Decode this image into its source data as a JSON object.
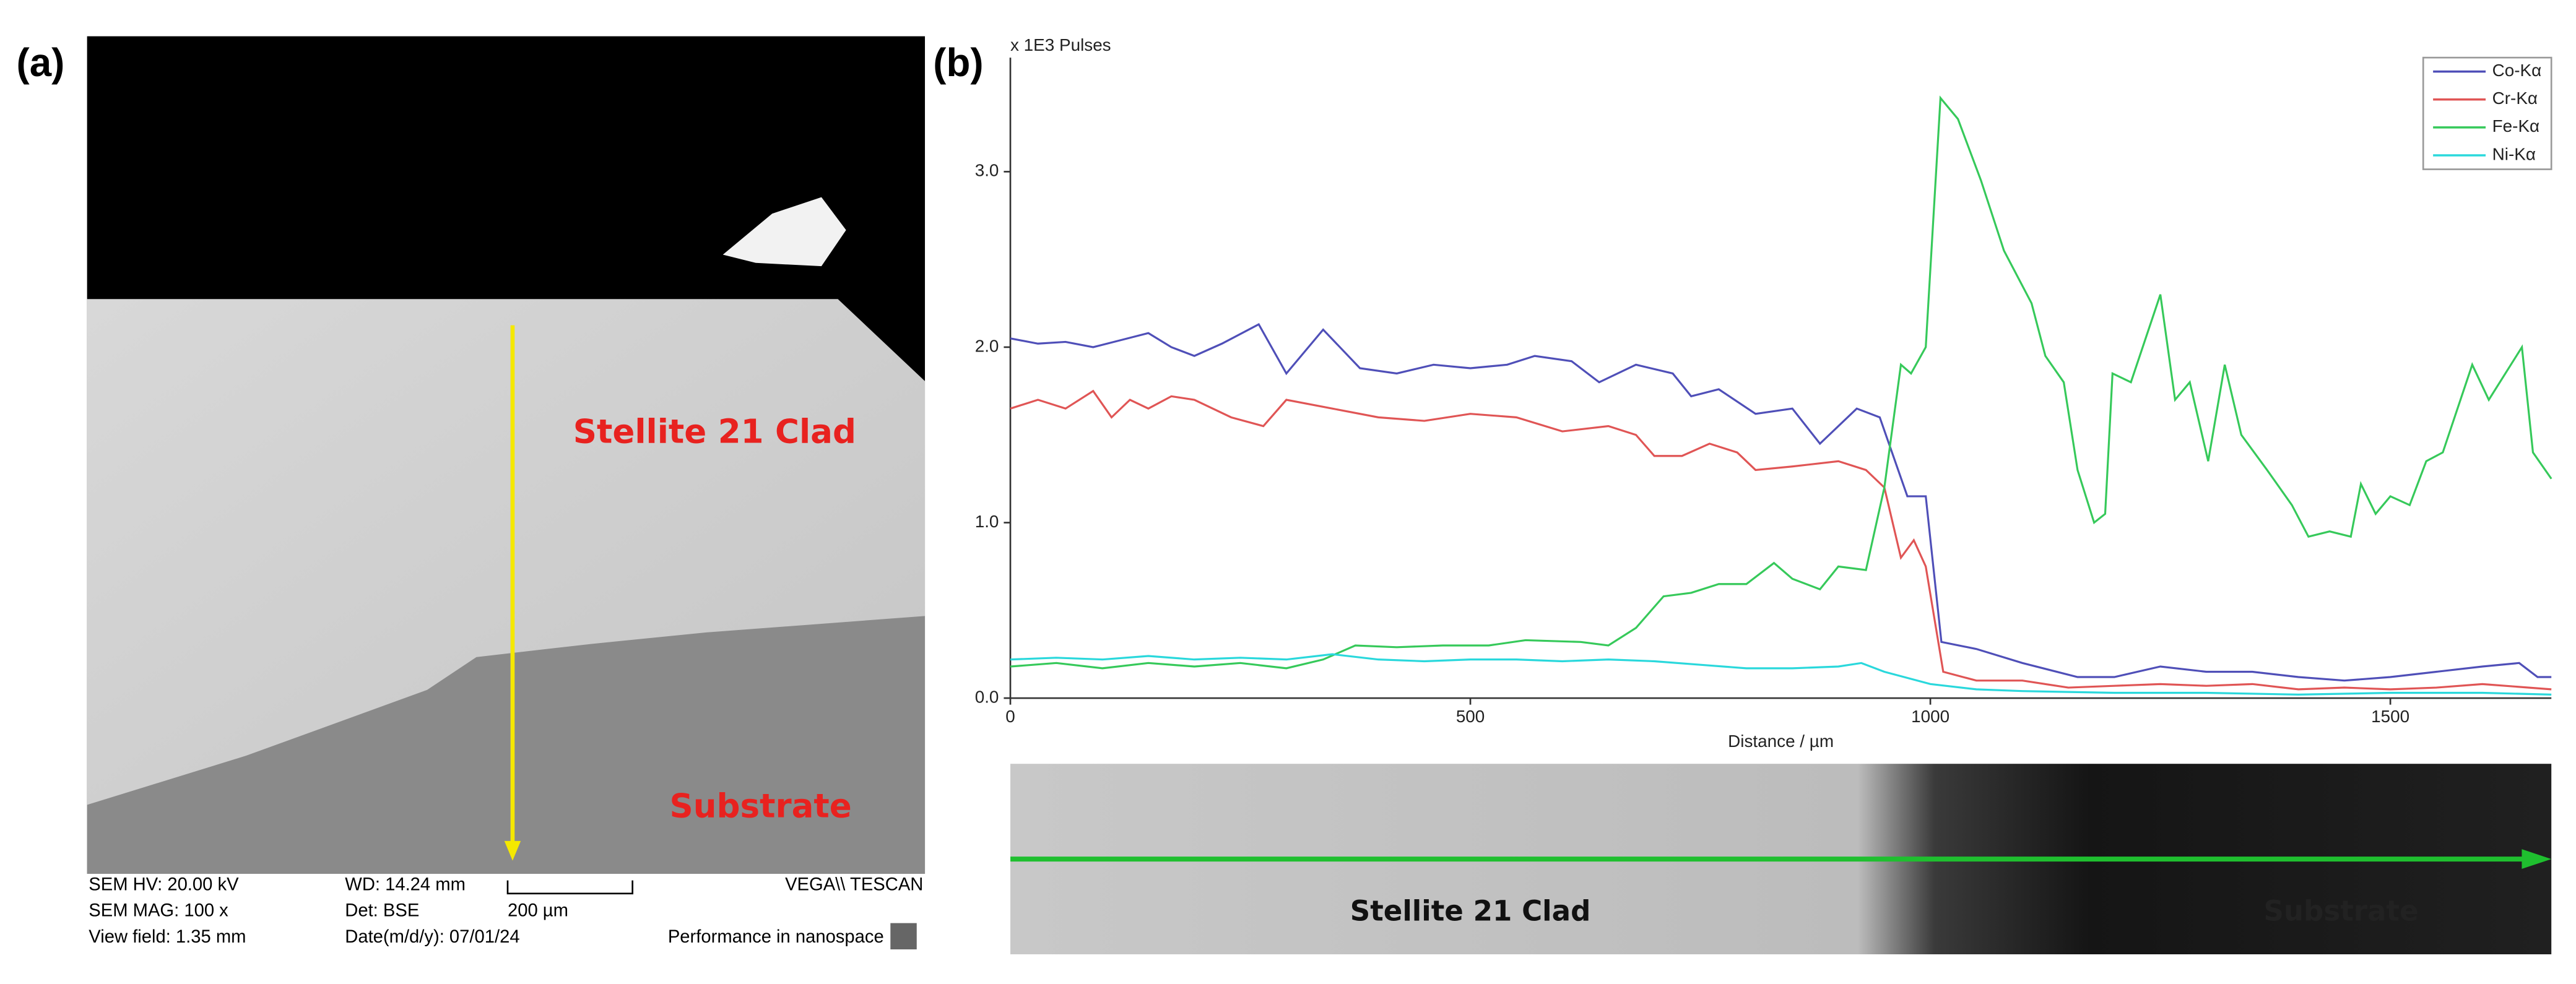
{
  "panel_labels": [
    "(a)",
    "(b)"
  ],
  "sem_image": {
    "regions": [
      "Stellite 21 Clad",
      "Substrate"
    ],
    "info": [
      "SEM HV: 20.00 kV",
      "WD: 14.24 mm",
      "VEGA\\\\ TESCAN",
      "SEM MAG: 100 x",
      "Det: BSE",
      "200 µm",
      "View field: 1.35 mm",
      "Date(m/d/y): 07/01/24",
      "Performance in nanospace"
    ]
  },
  "linescan_image": {
    "regions": [
      "Stellite 21 Clad",
      "Substrate"
    ]
  },
  "chart_data": {
    "type": "line",
    "y_axis_label": "x 1E3 Pulses",
    "x_axis_label": "Distance / µm",
    "xlim": [
      0,
      1675
    ],
    "ylim": [
      0,
      3.65
    ],
    "xticks": [
      0,
      500,
      1000,
      1500
    ],
    "yticks": [
      {
        "value": 0,
        "label": "0.0"
      },
      {
        "value": 1,
        "label": "1.0"
      },
      {
        "value": 2,
        "label": "2.0"
      },
      {
        "value": 3,
        "label": "3.0"
      }
    ],
    "legend": "upper right",
    "series": [
      {
        "name": "Co-Kα",
        "color": "#4f4fb8",
        "x": [
          0,
          30,
          60,
          90,
          120,
          150,
          175,
          200,
          230,
          270,
          300,
          340,
          380,
          420,
          460,
          500,
          540,
          570,
          610,
          640,
          680,
          720,
          740,
          770,
          810,
          850,
          880,
          920,
          945,
          975,
          995,
          1012,
          1050,
          1100,
          1160,
          1200,
          1250,
          1300,
          1350,
          1400,
          1450,
          1500,
          1550,
          1600,
          1640,
          1660,
          1675
        ],
        "values": [
          2.05,
          2.02,
          2.03,
          2.0,
          2.04,
          2.08,
          2.0,
          1.95,
          2.02,
          2.13,
          1.85,
          2.1,
          1.88,
          1.85,
          1.9,
          1.88,
          1.9,
          1.95,
          1.92,
          1.8,
          1.9,
          1.85,
          1.72,
          1.76,
          1.62,
          1.65,
          1.45,
          1.65,
          1.6,
          1.15,
          1.15,
          0.32,
          0.28,
          0.2,
          0.12,
          0.12,
          0.18,
          0.15,
          0.15,
          0.12,
          0.1,
          0.12,
          0.15,
          0.18,
          0.2,
          0.12,
          0.12
        ]
      },
      {
        "name": "Cr-Kα",
        "color": "#e05555",
        "x": [
          0,
          30,
          60,
          90,
          110,
          130,
          150,
          175,
          200,
          240,
          275,
          300,
          350,
          400,
          450,
          500,
          550,
          600,
          650,
          680,
          700,
          730,
          760,
          790,
          810,
          850,
          900,
          930,
          950,
          968,
          982,
          995,
          1014,
          1050,
          1100,
          1150,
          1200,
          1250,
          1300,
          1350,
          1400,
          1450,
          1500,
          1550,
          1600,
          1675
        ],
        "values": [
          1.65,
          1.7,
          1.65,
          1.75,
          1.6,
          1.7,
          1.65,
          1.72,
          1.7,
          1.6,
          1.55,
          1.7,
          1.65,
          1.6,
          1.58,
          1.62,
          1.6,
          1.52,
          1.55,
          1.5,
          1.38,
          1.38,
          1.45,
          1.4,
          1.3,
          1.32,
          1.35,
          1.3,
          1.2,
          0.8,
          0.9,
          0.75,
          0.15,
          0.1,
          0.1,
          0.06,
          0.07,
          0.08,
          0.07,
          0.08,
          0.05,
          0.06,
          0.05,
          0.06,
          0.08,
          0.05
        ]
      },
      {
        "name": "Fe-Kα",
        "color": "#36c95a",
        "x": [
          0,
          50,
          100,
          150,
          200,
          250,
          300,
          340,
          375,
          420,
          470,
          520,
          560,
          620,
          650,
          680,
          710,
          740,
          770,
          800,
          830,
          850,
          880,
          900,
          930,
          950,
          968,
          979,
          995,
          1011,
          1030,
          1055,
          1080,
          1110,
          1125,
          1145,
          1160,
          1178,
          1190,
          1198,
          1218,
          1234,
          1250,
          1266,
          1282,
          1302,
          1320,
          1338,
          1366,
          1393,
          1411,
          1434,
          1457,
          1468,
          1484,
          1500,
          1521,
          1539,
          1557,
          1589,
          1607,
          1643,
          1655,
          1675
        ],
        "values": [
          0.18,
          0.2,
          0.17,
          0.2,
          0.18,
          0.2,
          0.17,
          0.22,
          0.3,
          0.29,
          0.3,
          0.3,
          0.33,
          0.32,
          0.3,
          0.4,
          0.58,
          0.6,
          0.65,
          0.65,
          0.77,
          0.68,
          0.62,
          0.75,
          0.73,
          1.2,
          1.9,
          1.85,
          2.0,
          3.42,
          3.3,
          2.95,
          2.55,
          2.25,
          1.95,
          1.8,
          1.3,
          1.0,
          1.05,
          1.85,
          1.8,
          2.05,
          2.3,
          1.7,
          1.8,
          1.35,
          1.9,
          1.5,
          1.3,
          1.1,
          0.92,
          0.95,
          0.92,
          1.22,
          1.05,
          1.15,
          1.1,
          1.35,
          1.4,
          1.9,
          1.7,
          2.0,
          1.4,
          1.25
        ]
      },
      {
        "name": "Ni-Kα",
        "color": "#2ad8dc",
        "x": [
          0,
          50,
          100,
          150,
          200,
          250,
          300,
          350,
          400,
          450,
          500,
          550,
          600,
          650,
          700,
          750,
          800,
          850,
          900,
          925,
          950,
          1000,
          1050,
          1100,
          1200,
          1300,
          1400,
          1500,
          1600,
          1675
        ],
        "values": [
          0.22,
          0.23,
          0.22,
          0.24,
          0.22,
          0.23,
          0.22,
          0.25,
          0.22,
          0.21,
          0.22,
          0.22,
          0.21,
          0.22,
          0.21,
          0.19,
          0.17,
          0.17,
          0.18,
          0.2,
          0.15,
          0.08,
          0.05,
          0.04,
          0.03,
          0.03,
          0.02,
          0.03,
          0.03,
          0.02
        ]
      }
    ]
  }
}
